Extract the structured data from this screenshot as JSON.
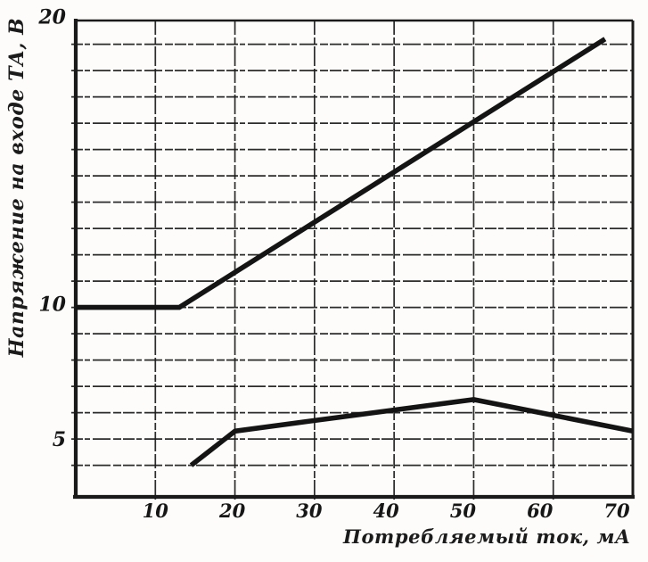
{
  "chart_data": {
    "type": "line",
    "title": "",
    "xlabel": "Потребляемый ток, мА",
    "ylabel": "Напряжение на входе ТА, В",
    "x_ticks": [
      10,
      20,
      30,
      40,
      50,
      60,
      70
    ],
    "y_ticks": [
      5,
      10,
      20
    ],
    "xlim": [
      0,
      70
    ],
    "ylim": [
      2.8,
      21
    ],
    "x_unit": "мА",
    "y_unit": "В",
    "grid": {
      "horizontal_step_volts": 1,
      "vertical_step_ma": 10,
      "style": "broken scanned dashes"
    },
    "legend_position": "none",
    "series": [
      {
        "name": "upper-rising-line",
        "points": [
          [
            0,
            10
          ],
          [
            13,
            10
          ],
          [
            66.5,
            20.2
          ]
        ]
      },
      {
        "name": "lower-arc-line",
        "points": [
          [
            14.5,
            4.0
          ],
          [
            20,
            5.3
          ],
          [
            30,
            5.7
          ],
          [
            40,
            6.1
          ],
          [
            50,
            6.5
          ],
          [
            60,
            5.9
          ],
          [
            70,
            5.3
          ]
        ]
      }
    ]
  },
  "style": {
    "ink_color": "#1a1a1a",
    "paper_color": "#fdfcfa"
  }
}
